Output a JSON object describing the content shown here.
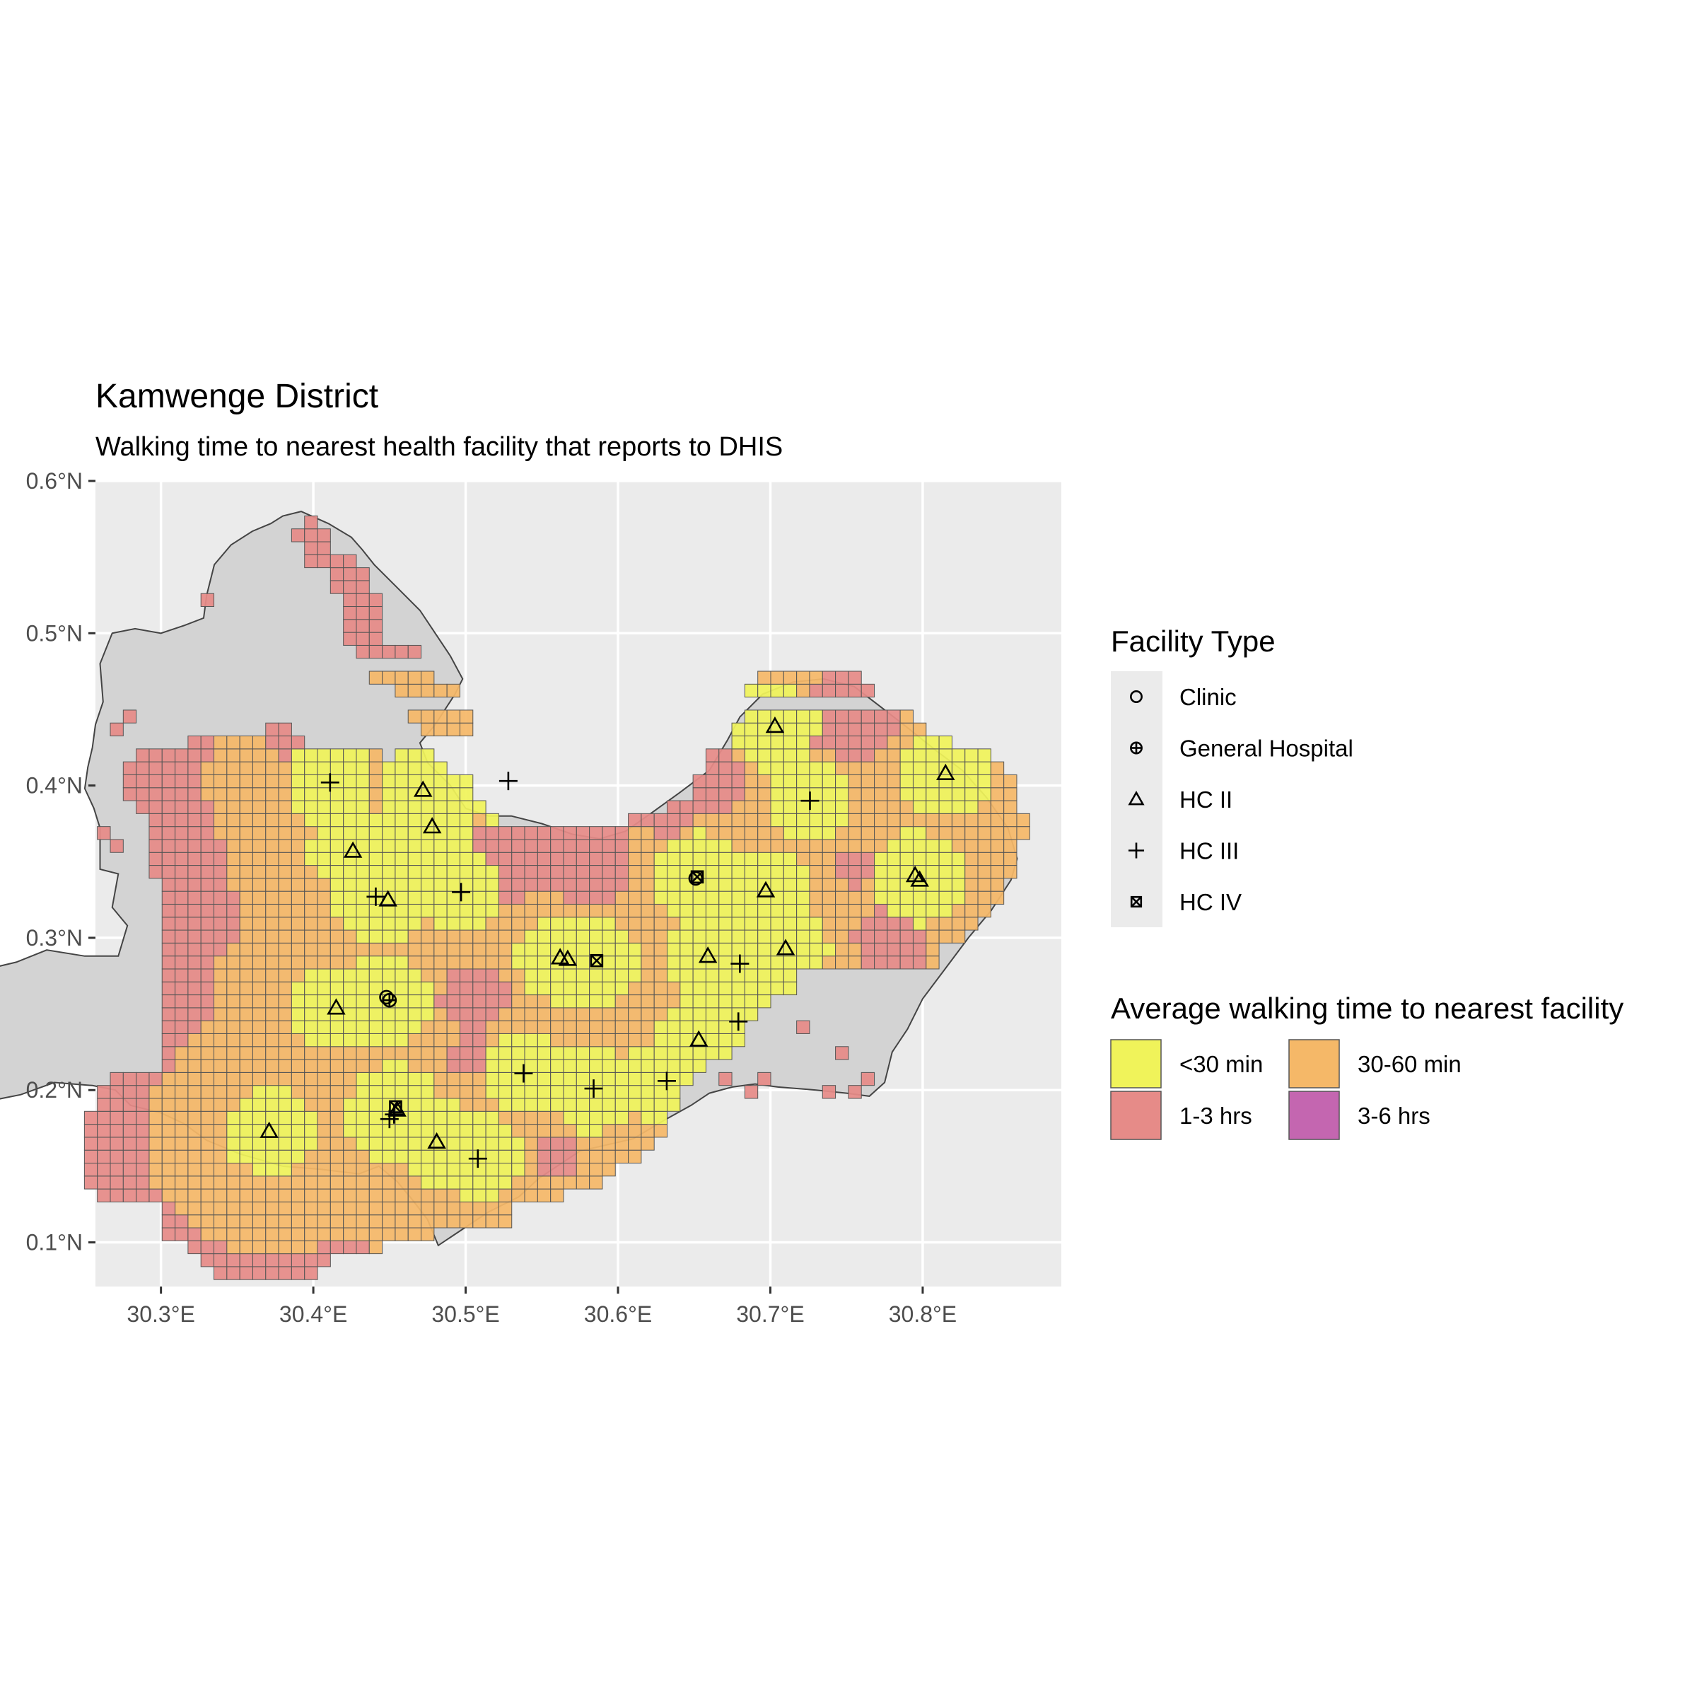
{
  "title": "Kamwenge District",
  "subtitle": "Walking time to nearest health facility that reports to DHIS",
  "axes": {
    "x_ticks": [
      "30.3°E",
      "30.4°E",
      "30.5°E",
      "30.6°E",
      "30.7°E",
      "30.8°E"
    ],
    "y_ticks": [
      "0.6°N",
      "0.5°N",
      "0.4°N",
      "0.3°N",
      "0.2°N",
      "0.1°N"
    ],
    "x_values": [
      30.3,
      30.4,
      30.5,
      30.6,
      30.7,
      30.8
    ],
    "y_values": [
      0.6,
      0.5,
      0.4,
      0.3,
      0.2,
      0.1
    ],
    "xlim": [
      30.257,
      30.891
    ],
    "ylim": [
      0.071,
      0.6
    ]
  },
  "legend_facility": {
    "title": "Facility Type",
    "items": [
      {
        "label": "Clinic",
        "icon": "circle-icon"
      },
      {
        "label": "General Hospital",
        "icon": "circle-plus-icon"
      },
      {
        "label": "HC II",
        "icon": "triangle-icon"
      },
      {
        "label": "HC III",
        "icon": "plus-icon"
      },
      {
        "label": "HC IV",
        "icon": "square-x-icon"
      }
    ]
  },
  "legend_time": {
    "title": "Average walking time to nearest facility",
    "items": [
      {
        "label": "<30 min",
        "color": "#f0f35a"
      },
      {
        "label": "30-60 min",
        "color": "#f5b868"
      },
      {
        "label": "1-3 hrs",
        "color": "#e68b88"
      },
      {
        "label": "3-6 hrs",
        "color": "#c466b0"
      }
    ]
  },
  "colors": {
    "panel": "#ebebeb",
    "grid": "#ffffff",
    "district": "#d3d3d3",
    "cell_border": "#555555"
  },
  "chart_data": {
    "type": "map",
    "facilities": [
      {
        "type": "Clinic",
        "x": 30.448,
        "y": 0.261
      },
      {
        "type": "General Hospital",
        "x": 30.45,
        "y": 0.259
      },
      {
        "type": "Clinic",
        "x": 30.651,
        "y": 0.339
      },
      {
        "type": "HC II",
        "x": 30.415,
        "y": 0.254
      },
      {
        "type": "HC II",
        "x": 30.426,
        "y": 0.357
      },
      {
        "type": "HC II",
        "x": 30.449,
        "y": 0.325
      },
      {
        "type": "HC II",
        "x": 30.472,
        "y": 0.397
      },
      {
        "type": "HC II",
        "x": 30.478,
        "y": 0.373
      },
      {
        "type": "HC II",
        "x": 30.371,
        "y": 0.173
      },
      {
        "type": "HC II",
        "x": 30.481,
        "y": 0.166
      },
      {
        "type": "HC II",
        "x": 30.562,
        "y": 0.287
      },
      {
        "type": "HC II",
        "x": 30.567,
        "y": 0.286
      },
      {
        "type": "HC II",
        "x": 30.653,
        "y": 0.233
      },
      {
        "type": "HC II",
        "x": 30.659,
        "y": 0.288
      },
      {
        "type": "HC II",
        "x": 30.697,
        "y": 0.331
      },
      {
        "type": "HC II",
        "x": 30.71,
        "y": 0.293
      },
      {
        "type": "HC II",
        "x": 30.703,
        "y": 0.439
      },
      {
        "type": "HC II",
        "x": 30.795,
        "y": 0.341
      },
      {
        "type": "HC II",
        "x": 30.798,
        "y": 0.338
      },
      {
        "type": "HC II",
        "x": 30.815,
        "y": 0.408
      },
      {
        "type": "HC II",
        "x": 30.455,
        "y": 0.187
      },
      {
        "type": "HC III",
        "x": 30.411,
        "y": 0.402
      },
      {
        "type": "HC III",
        "x": 30.528,
        "y": 0.403
      },
      {
        "type": "HC III",
        "x": 30.441,
        "y": 0.327
      },
      {
        "type": "HC III",
        "x": 30.497,
        "y": 0.33
      },
      {
        "type": "HC III",
        "x": 30.726,
        "y": 0.39
      },
      {
        "type": "HC III",
        "x": 30.68,
        "y": 0.283
      },
      {
        "type": "HC III",
        "x": 30.679,
        "y": 0.245
      },
      {
        "type": "HC III",
        "x": 30.538,
        "y": 0.211
      },
      {
        "type": "HC III",
        "x": 30.584,
        "y": 0.201
      },
      {
        "type": "HC III",
        "x": 30.632,
        "y": 0.206
      },
      {
        "type": "HC III",
        "x": 30.508,
        "y": 0.155
      },
      {
        "type": "HC III",
        "x": 30.45,
        "y": 0.181
      },
      {
        "type": "HC III",
        "x": 30.453,
        "y": 0.184
      },
      {
        "type": "HC IV",
        "x": 30.586,
        "y": 0.285
      },
      {
        "type": "HC IV",
        "x": 30.652,
        "y": 0.34
      },
      {
        "type": "HC IV",
        "x": 30.454,
        "y": 0.189
      }
    ]
  }
}
